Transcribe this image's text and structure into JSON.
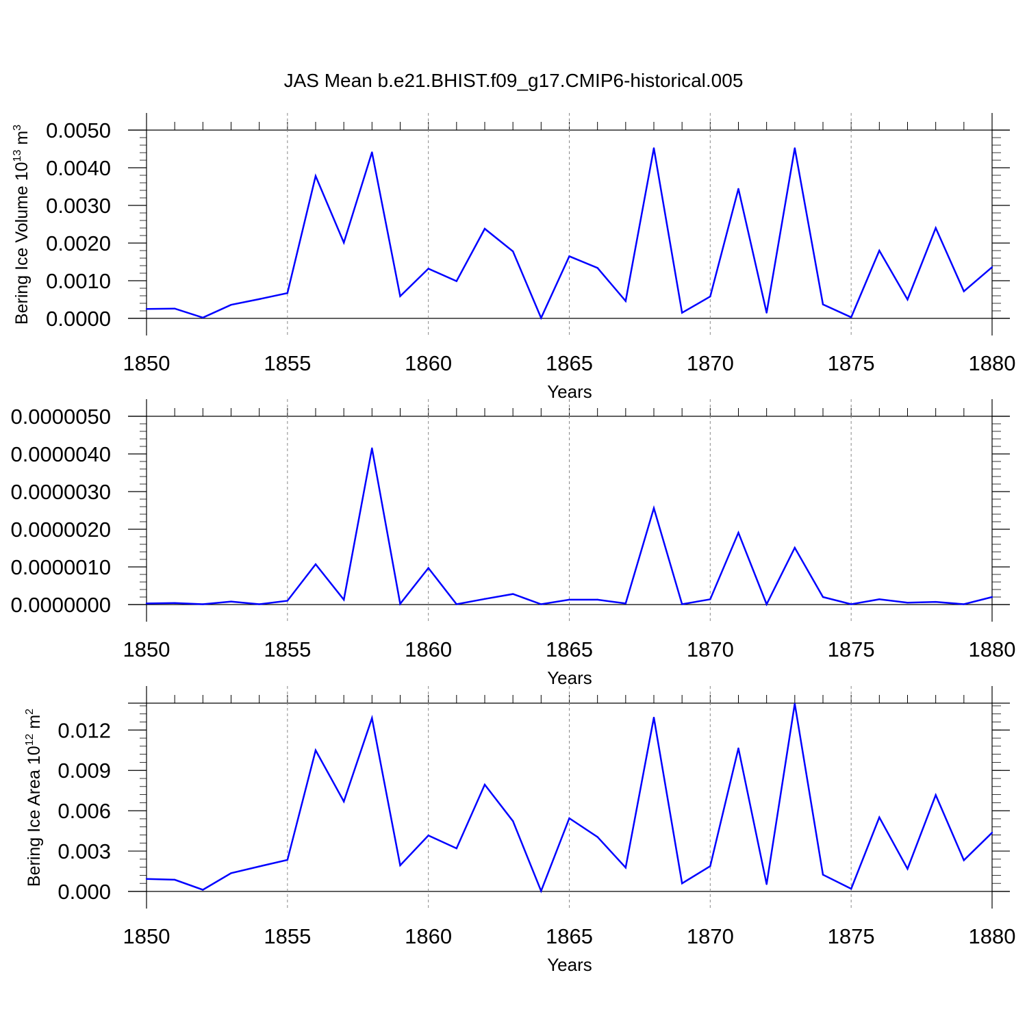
{
  "title": "JAS Mean b.e21.BHIST.f09_g17.CMIP6-historical.005",
  "colors": {
    "series": "#0000ff",
    "axis": "#000000",
    "gridline": "#888888"
  },
  "chart_data": [
    {
      "type": "line",
      "title": "JAS Mean b.e21.BHIST.f09_g17.CMIP6-historical.005",
      "xlabel": "Years",
      "ylabel": {
        "text": "Bering Ice Volume 10",
        "exp": "13",
        "unit": " m",
        "unit_exp": "3"
      },
      "xlim": [
        1850,
        1880
      ],
      "ylim": [
        0,
        0.005
      ],
      "xticks": [
        "1850",
        "1855",
        "1860",
        "1865",
        "1870",
        "1875",
        "1880"
      ],
      "yticks": [
        {
          "value": 0.0,
          "label": "0.0000"
        },
        {
          "value": 0.001,
          "label": "0.0010"
        },
        {
          "value": 0.002,
          "label": "0.0020"
        },
        {
          "value": 0.003,
          "label": "0.0030"
        },
        {
          "value": 0.004,
          "label": "0.0040"
        },
        {
          "value": 0.005,
          "label": "0.0050"
        }
      ],
      "grid": "vertical dashed at labeled years",
      "x": [
        1850,
        1851,
        1852,
        1853,
        1854,
        1855,
        1856,
        1857,
        1858,
        1859,
        1860,
        1861,
        1862,
        1863,
        1864,
        1865,
        1866,
        1867,
        1868,
        1869,
        1870,
        1871,
        1872,
        1873,
        1874,
        1875,
        1876,
        1877,
        1878,
        1879,
        1880
      ],
      "y": [
        0.00025,
        0.00026,
        2e-05,
        0.00036,
        0.00051,
        0.00067,
        0.00378,
        0.00201,
        0.00441,
        0.00059,
        0.00132,
        0.00099,
        0.00238,
        0.00178,
        1e-05,
        0.00165,
        0.00134,
        0.00046,
        0.00452,
        0.00015,
        0.00058,
        0.00344,
        0.00015,
        0.00452,
        0.00037,
        3e-05,
        0.0018,
        0.0005,
        0.0024,
        0.00072,
        0.00136
      ]
    },
    {
      "type": "line",
      "xlabel": "Years",
      "ylabel": null,
      "xlim": [
        1850,
        1880
      ],
      "ylim": [
        0,
        5e-06
      ],
      "xticks": [
        "1850",
        "1855",
        "1860",
        "1865",
        "1870",
        "1875",
        "1880"
      ],
      "yticks": [
        {
          "value": 0.0,
          "label": "0.0000000"
        },
        {
          "value": 1e-06,
          "label": "0.0000010"
        },
        {
          "value": 2e-06,
          "label": "0.0000020"
        },
        {
          "value": 3e-06,
          "label": "0.0000030"
        },
        {
          "value": 4e-06,
          "label": "0.0000040"
        },
        {
          "value": 5e-06,
          "label": "0.0000050"
        }
      ],
      "grid": "vertical dashed at labeled years",
      "x": [
        1850,
        1851,
        1852,
        1853,
        1854,
        1855,
        1856,
        1857,
        1858,
        1859,
        1860,
        1861,
        1862,
        1863,
        1864,
        1865,
        1866,
        1867,
        1868,
        1869,
        1870,
        1871,
        1872,
        1873,
        1874,
        1875,
        1876,
        1877,
        1878,
        1879,
        1880
      ],
      "y": [
        3e-08,
        4e-08,
        1e-08,
        8e-08,
        1e-08,
        1e-07,
        1.07e-06,
        1.3e-07,
        4.15e-06,
        2e-08,
        9.7e-07,
        1e-08,
        1.5e-07,
        2.8e-07,
        1e-08,
        1.3e-07,
        1.3e-07,
        3e-08,
        2.56e-06,
        1e-08,
        1.4e-07,
        1.91e-06,
        1e-08,
        1.51e-06,
        2e-07,
        1e-08,
        1.4e-07,
        5e-08,
        7e-08,
        1e-08,
        2e-07
      ]
    },
    {
      "type": "line",
      "xlabel": "Years",
      "ylabel": {
        "text": "Bering Ice Area 10",
        "exp": "12",
        "unit": " m",
        "unit_exp": "2"
      },
      "xlim": [
        1850,
        1880
      ],
      "ylim": [
        0,
        0.014
      ],
      "xticks": [
        "1850",
        "1855",
        "1860",
        "1865",
        "1870",
        "1875",
        "1880"
      ],
      "yticks": [
        {
          "value": 0.0,
          "label": "0.000"
        },
        {
          "value": 0.003,
          "label": "0.003"
        },
        {
          "value": 0.006,
          "label": "0.006"
        },
        {
          "value": 0.009,
          "label": "0.009"
        },
        {
          "value": 0.012,
          "label": "0.012"
        }
      ],
      "grid": "vertical dashed at labeled years",
      "x": [
        1850,
        1851,
        1852,
        1853,
        1854,
        1855,
        1856,
        1857,
        1858,
        1859,
        1860,
        1861,
        1862,
        1863,
        1864,
        1865,
        1866,
        1867,
        1868,
        1869,
        1870,
        1871,
        1872,
        1873,
        1874,
        1875,
        1876,
        1877,
        1878,
        1879,
        1880
      ],
      "y": [
        0.00093,
        0.00087,
        0.00012,
        0.00136,
        0.00186,
        0.00234,
        0.01049,
        0.00669,
        0.01289,
        0.00194,
        0.00416,
        0.0032,
        0.00794,
        0.00523,
        3e-05,
        0.00544,
        0.00405,
        0.00177,
        0.01293,
        0.0006,
        0.00188,
        0.01064,
        0.00054,
        0.01396,
        0.00124,
        0.0002,
        0.00551,
        0.00168,
        0.00717,
        0.00232,
        0.00437
      ]
    }
  ]
}
